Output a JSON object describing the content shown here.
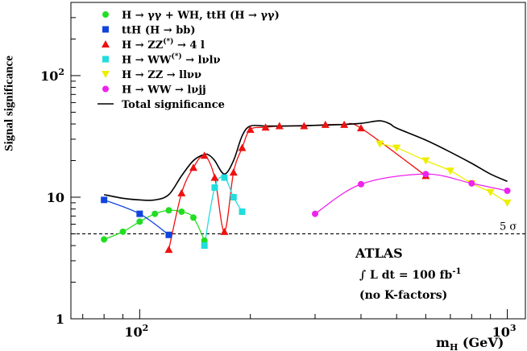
{
  "chart_data": {
    "type": "line",
    "xscale": "log",
    "yscale": "log",
    "xlim": [
      65,
      1120
    ],
    "ylim": [
      1,
      400
    ],
    "xlabel": "m",
    "xlabel_sub": "H",
    "xlabel_unit": " (GeV)",
    "ylabel": "Signal significance",
    "x_major_ticks": [
      {
        "value": 100,
        "base": "10",
        "exp": "2"
      },
      {
        "value": 1000,
        "base": "10",
        "exp": "3"
      }
    ],
    "y_major_ticks": [
      {
        "value": 1,
        "label": "1"
      },
      {
        "value": 10,
        "label": "10"
      },
      {
        "value": 100,
        "base": "10",
        "exp": "2"
      }
    ],
    "reference_line": {
      "y": 5,
      "label": "5 σ",
      "style": "dashed"
    },
    "annotations": {
      "experiment": "ATLAS",
      "luminosity_prefix": "∫ L dt = 100 fb",
      "luminosity_exp": "-1",
      "note": "(no K-factors)"
    },
    "legend": {
      "position": "top-left",
      "entries": [
        {
          "marker": "circle",
          "color": "#22dd22",
          "label": "H → γγ  +  WH, ttH (H → γγ)"
        },
        {
          "marker": "square",
          "color": "#1144dd",
          "label": "ttH (H → bb)"
        },
        {
          "marker": "triangle-up",
          "color": "#ee1111",
          "label_pre": "H → ZZ",
          "label_sup": "(*)",
          "label_post": " → 4 l"
        },
        {
          "marker": "square",
          "color": "#22dddd",
          "label_pre": "H → WW",
          "label_sup": "(*)",
          "label_post": " → lνlν"
        },
        {
          "marker": "triangle-down",
          "color": "#eeee00",
          "label": "H → ZZ → llνν"
        },
        {
          "marker": "circle",
          "color": "#ee22ee",
          "label": "H → WW → lνjj"
        },
        {
          "marker": "line",
          "color": "#000000",
          "label": "Total significance"
        }
      ]
    },
    "series": [
      {
        "name": "H → γγ + WH, ttH (H → γγ)",
        "color": "#22dd22",
        "marker": "circle",
        "x": [
          80,
          90,
          100,
          110,
          120,
          130,
          140,
          150
        ],
        "y": [
          4.5,
          5.2,
          6.3,
          7.3,
          7.8,
          7.6,
          6.8,
          4.4
        ]
      },
      {
        "name": "ttH (H → bb)",
        "color": "#1144dd",
        "marker": "square",
        "x": [
          80,
          100,
          120
        ],
        "y": [
          9.5,
          7.3,
          4.9
        ]
      },
      {
        "name": "H → ZZ(*) → 4 l",
        "color": "#ee1111",
        "marker": "triangle-up",
        "x": [
          120,
          130,
          140,
          150,
          160,
          170,
          180,
          190,
          200,
          220,
          240,
          280,
          320,
          360,
          400,
          600
        ],
        "y": [
          3.7,
          10.8,
          17.5,
          22,
          14.5,
          5.2,
          16,
          25.5,
          36,
          37.5,
          38.5,
          38.5,
          39.5,
          39.5,
          37,
          15
        ]
      },
      {
        "name": "H → WW(*) → lνlν",
        "color": "#22dddd",
        "marker": "square",
        "x": [
          150,
          160,
          170,
          180,
          190
        ],
        "y": [
          4,
          12,
          14.5,
          10,
          7.6
        ]
      },
      {
        "name": "H → ZZ → llνν",
        "color": "#eeee00",
        "marker": "triangle-down",
        "x": [
          450,
          500,
          600,
          700,
          800,
          900,
          1000
        ],
        "y": [
          27.5,
          25.5,
          20,
          16.5,
          13,
          11,
          9
        ]
      },
      {
        "name": "H → WW → lνjj",
        "color": "#ee22ee",
        "marker": "circle",
        "x": [
          300,
          400,
          600,
          800,
          1000
        ],
        "y": [
          7.3,
          12.8,
          15.5,
          13,
          11.3
        ]
      },
      {
        "name": "Total significance",
        "color": "#000000",
        "marker": "none",
        "x": [
          80,
          90,
          100,
          110,
          120,
          130,
          140,
          150,
          155,
          160,
          170,
          180,
          190,
          200,
          220,
          250,
          300,
          350,
          400,
          450,
          480,
          500,
          600,
          700,
          800,
          900,
          1000
        ],
        "y": [
          10.5,
          9.8,
          9.5,
          9.5,
          10.5,
          15,
          20,
          22.5,
          22,
          20,
          15.5,
          20,
          32,
          38.5,
          38.5,
          38.5,
          39,
          39.5,
          40.5,
          42.5,
          40,
          37,
          29.5,
          23.5,
          19,
          15.5,
          13.5
        ]
      }
    ]
  }
}
